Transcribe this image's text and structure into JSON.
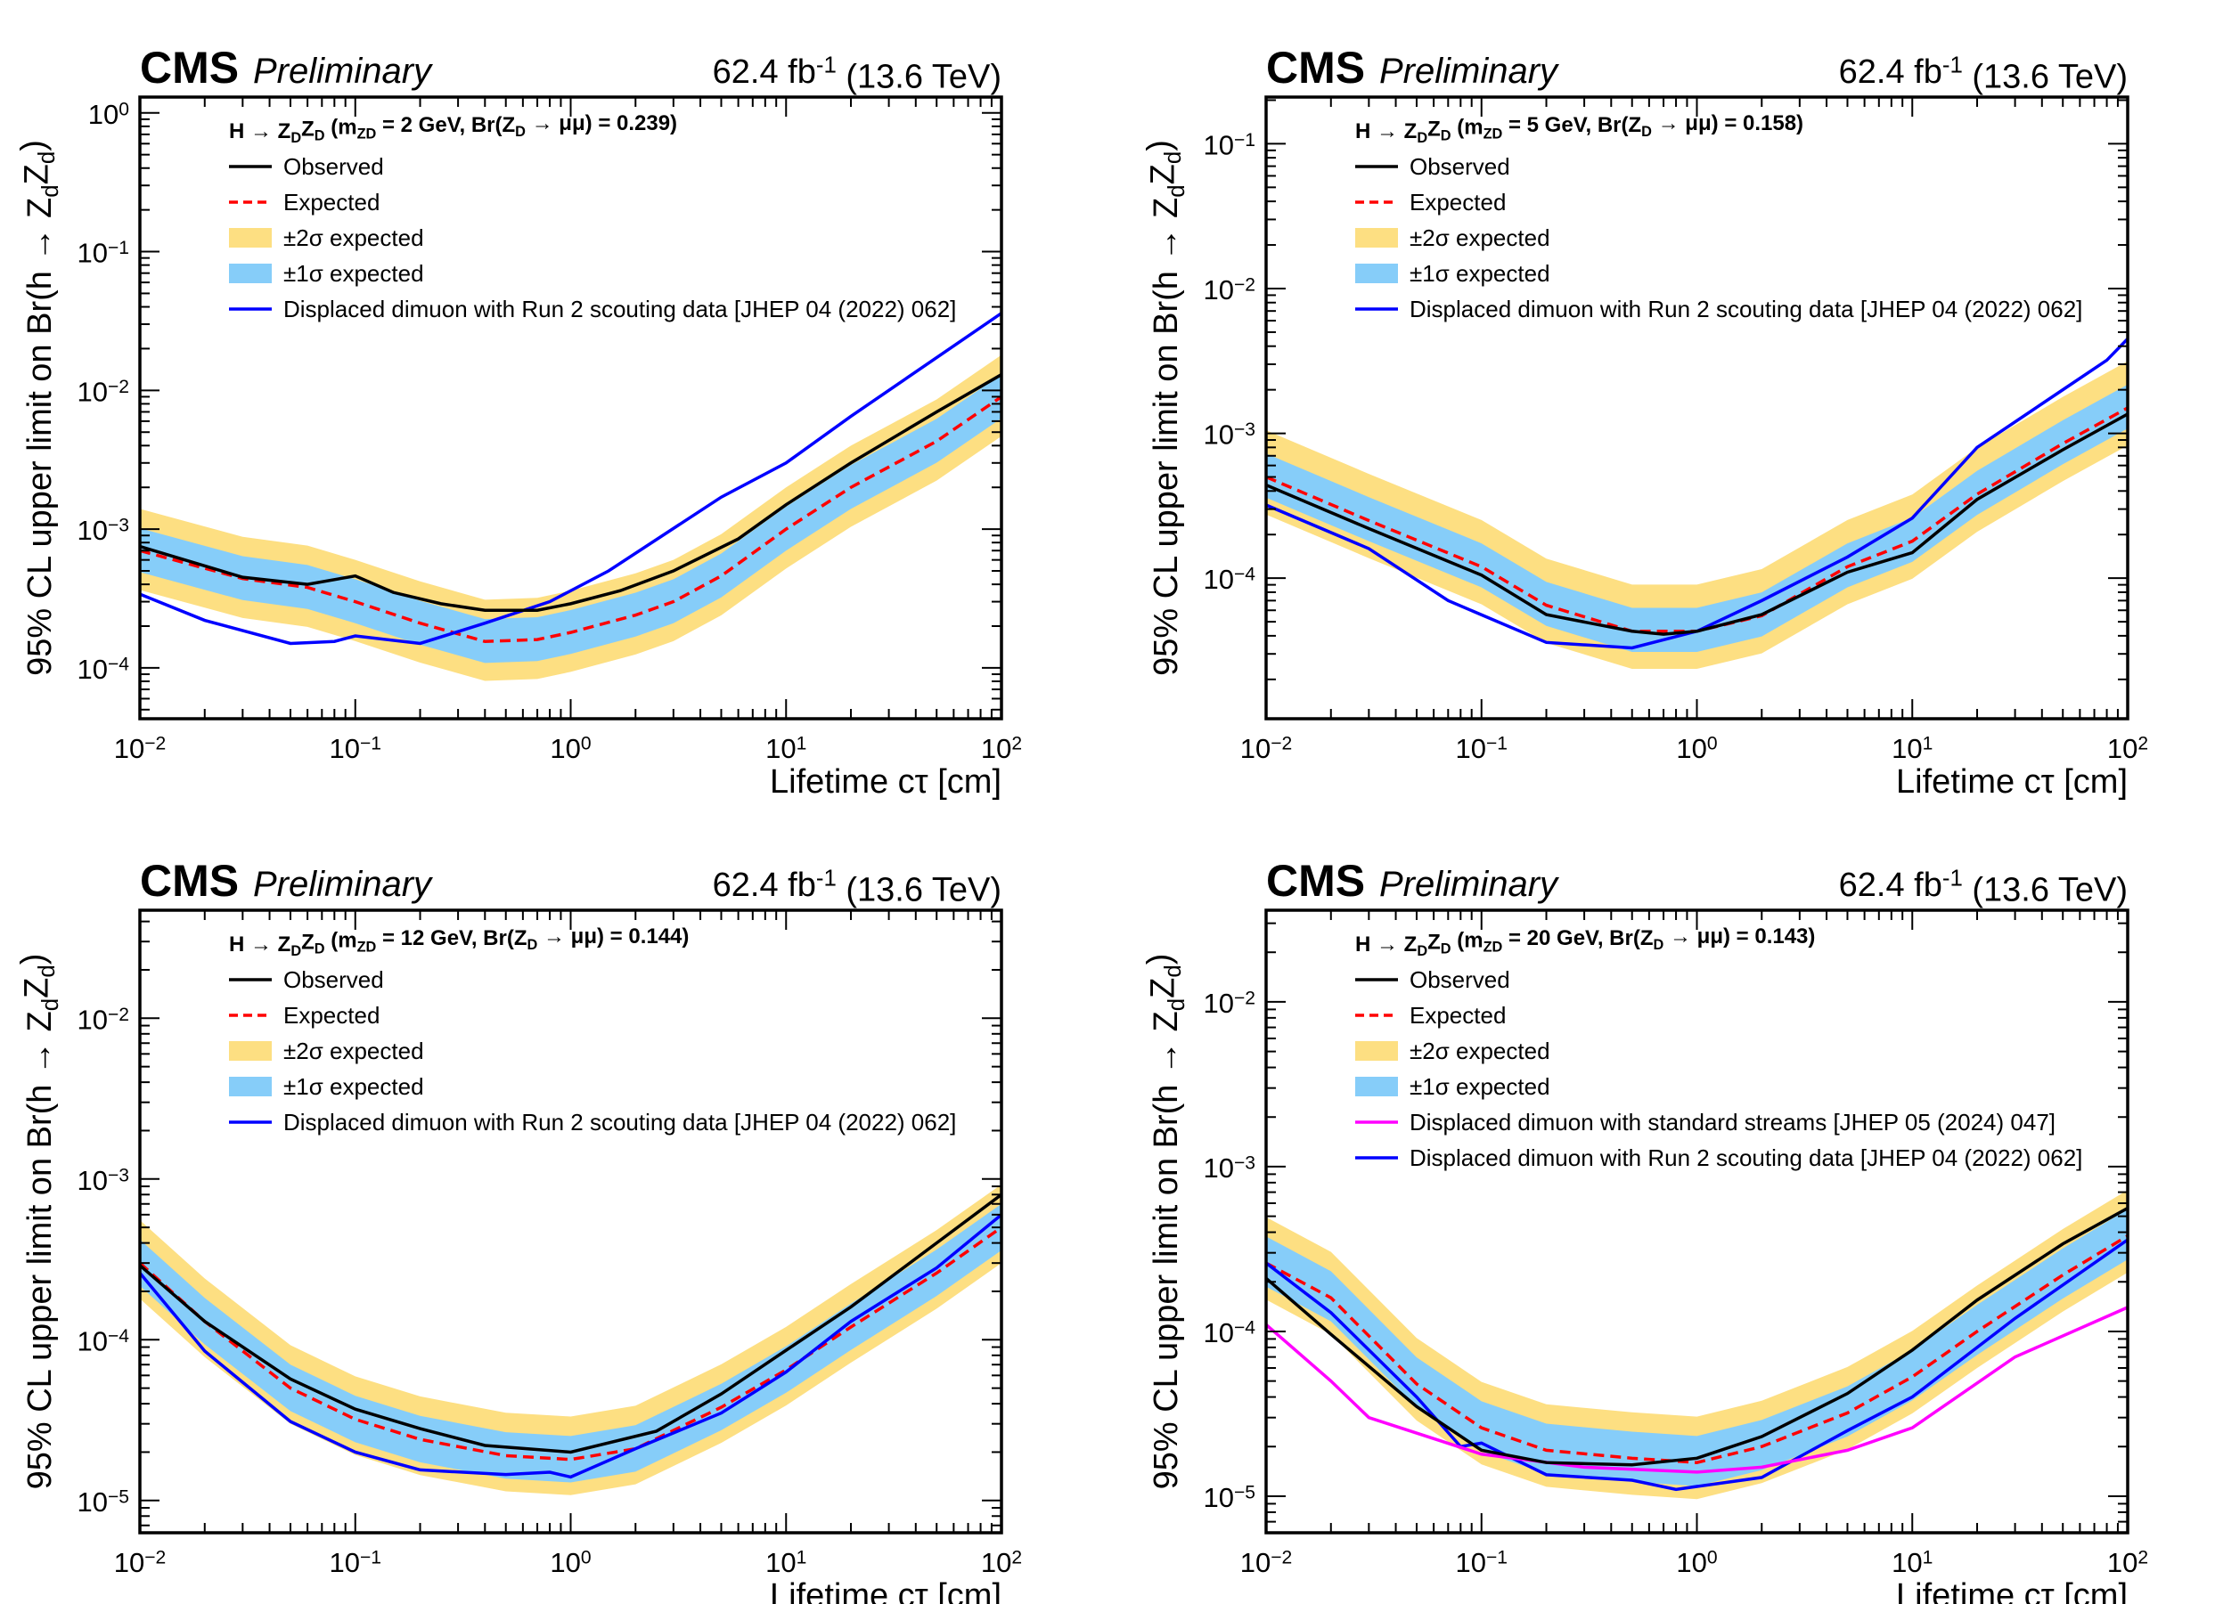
{
  "chart_data": [
    {
      "type": "line",
      "header": {
        "experiment": "CMS",
        "label": "Preliminary",
        "lumi": "62.4 fb^{-1} (13.6 TeV)"
      },
      "xlabel": "Lifetime cτ [cm]",
      "ylabel": "95% CL upper limit on Br(h → Z_{d}Z_{d})",
      "xscale": "log",
      "yscale": "log",
      "xlim": [
        0.01,
        100
      ],
      "ylim": [
        4.3e-05,
        1.3
      ],
      "x_ticks": [
        {
          "value": 0.01,
          "label": "10^{−2}"
        },
        {
          "value": 0.1,
          "label": "10^{−1}"
        },
        {
          "value": 1,
          "label": "10^{0}"
        },
        {
          "value": 10,
          "label": "10^{1}"
        },
        {
          "value": 100,
          "label": "10^{2}"
        }
      ],
      "y_ticks": [
        {
          "value": 1,
          "label": "10^{0}"
        },
        {
          "value": 0.1,
          "label": "10^{−1}"
        },
        {
          "value": 0.01,
          "label": "10^{−2}"
        },
        {
          "value": 0.001,
          "label": "10^{−3}"
        },
        {
          "value": 0.0001,
          "label": "10^{−4}"
        }
      ],
      "legend_title": "H → Z_{D}Z_{D} (m_{ZD} =  2 GeV, Br(Z_{D} → μμ) = 0.239)",
      "legend_position": "top-left",
      "legend": [
        {
          "label": "Observed",
          "kind": "line",
          "color": "#000000"
        },
        {
          "label": "Expected",
          "kind": "dashed",
          "color": "#ff0000"
        },
        {
          "label": "±2σ expected",
          "kind": "box",
          "color": "#fddf82"
        },
        {
          "label": "±1σ expected",
          "kind": "box",
          "color": "#86cdf9"
        },
        {
          "label": "Displaced dimuon with Run 2 scouting data [JHEP 04 (2022) 062]",
          "kind": "line",
          "color": "#0000ff"
        }
      ],
      "expected": {
        "x": [
          0.01,
          0.03,
          0.06,
          0.1,
          0.2,
          0.4,
          0.7,
          1,
          2,
          3,
          5,
          10,
          20,
          50,
          100
        ],
        "y": [
          0.0007,
          0.00044,
          0.00038,
          0.0003,
          0.00021,
          0.000155,
          0.00016,
          0.00018,
          0.00024,
          0.0003,
          0.00046,
          0.001,
          0.002,
          0.0043,
          0.009
        ]
      },
      "band_factors": {
        "one_sigma": [
          0.7,
          1.45
        ],
        "two_sigma": [
          0.52,
          2.0
        ]
      },
      "series": [
        {
          "name": "Observed",
          "color": "#000000",
          "x": [
            0.01,
            0.03,
            0.06,
            0.1,
            0.15,
            0.25,
            0.4,
            0.7,
            1,
            1.7,
            3,
            6,
            10,
            20,
            50,
            100
          ],
          "y": [
            0.00075,
            0.00045,
            0.0004,
            0.00046,
            0.00035,
            0.00029,
            0.00026,
            0.00026,
            0.00029,
            0.00036,
            0.0005,
            0.00085,
            0.0015,
            0.003,
            0.007,
            0.013
          ]
        },
        {
          "name": "Displaced dimuon with Run 2 scouting data [JHEP 04 (2022) 062]",
          "color": "#0000ff",
          "x": [
            0.01,
            0.02,
            0.05,
            0.08,
            0.1,
            0.2,
            0.4,
            0.8,
            1.5,
            5,
            10,
            20,
            100
          ],
          "y": [
            0.00034,
            0.00022,
            0.00015,
            0.000155,
            0.00017,
            0.00015,
            0.00021,
            0.0003,
            0.0005,
            0.0017,
            0.003,
            0.0065,
            0.036
          ]
        }
      ]
    },
    {
      "type": "line",
      "header": {
        "experiment": "CMS",
        "label": "Preliminary",
        "lumi": "62.4 fb^{-1} (13.6 TeV)"
      },
      "xlabel": "Lifetime cτ [cm]",
      "ylabel": "95% CL upper limit on Br(h → Z_{d}Z_{d})",
      "xscale": "log",
      "yscale": "log",
      "xlim": [
        0.01,
        100
      ],
      "ylim": [
        1.07e-05,
        0.21
      ],
      "x_ticks": [
        {
          "value": 0.01,
          "label": "10^{−2}"
        },
        {
          "value": 0.1,
          "label": "10^{−1}"
        },
        {
          "value": 1,
          "label": "10^{0}"
        },
        {
          "value": 10,
          "label": "10^{1}"
        },
        {
          "value": 100,
          "label": "10^{2}"
        }
      ],
      "y_ticks": [
        {
          "value": 0.1,
          "label": "10^{−1}"
        },
        {
          "value": 0.01,
          "label": "10^{−2}"
        },
        {
          "value": 0.001,
          "label": "10^{−3}"
        },
        {
          "value": 0.0001,
          "label": "10^{−4}"
        }
      ],
      "legend_title": "H → Z_{D}Z_{D} (m_{ZD} =  5 GeV, Br(Z_{D} → μμ) = 0.158)",
      "legend_position": "top-left",
      "legend": [
        {
          "label": "Observed",
          "kind": "line",
          "color": "#000000"
        },
        {
          "label": "Expected",
          "kind": "dashed",
          "color": "#ff0000"
        },
        {
          "label": "±2σ expected",
          "kind": "box",
          "color": "#fddf82"
        },
        {
          "label": "±1σ expected",
          "kind": "box",
          "color": "#86cdf9"
        },
        {
          "label": "Displaced dimuon with Run 2 scouting data [JHEP 04 (2022) 062]",
          "kind": "line",
          "color": "#0000ff"
        }
      ],
      "expected": {
        "x": [
          0.01,
          0.03,
          0.1,
          0.2,
          0.5,
          1,
          2,
          5,
          10,
          20,
          50,
          100
        ],
        "y": [
          0.0005,
          0.00025,
          0.00012,
          6.5e-05,
          4.3e-05,
          4.3e-05,
          5.5e-05,
          0.00012,
          0.00018,
          0.00038,
          0.00085,
          0.0015
        ]
      },
      "band_factors": {
        "one_sigma": [
          0.72,
          1.45
        ],
        "two_sigma": [
          0.55,
          2.1
        ]
      },
      "series": [
        {
          "name": "Observed",
          "color": "#000000",
          "x": [
            0.01,
            0.03,
            0.1,
            0.2,
            0.5,
            0.7,
            1,
            2,
            5,
            10,
            20,
            50,
            100
          ],
          "y": [
            0.00044,
            0.00022,
            0.000105,
            5.6e-05,
            4.3e-05,
            4.1e-05,
            4.3e-05,
            5.6e-05,
            0.00011,
            0.00015,
            0.00035,
            0.00077,
            0.00136
          ]
        },
        {
          "name": "Displaced dimuon with Run 2 scouting data [JHEP 04 (2022) 062]",
          "color": "#0000ff",
          "x": [
            0.01,
            0.03,
            0.07,
            0.2,
            0.5,
            1,
            2,
            5,
            10,
            20,
            50,
            80,
            100
          ],
          "y": [
            0.00032,
            0.00016,
            7e-05,
            3.6e-05,
            3.3e-05,
            4.3e-05,
            7e-05,
            0.00014,
            0.00026,
            0.0008,
            0.002,
            0.0032,
            0.0045
          ]
        }
      ]
    },
    {
      "type": "line",
      "header": {
        "experiment": "CMS",
        "label": "Preliminary",
        "lumi": "62.4 fb^{-1} (13.6 TeV)"
      },
      "xlabel": "Lifetime cτ [cm]",
      "ylabel": "95% CL upper limit on Br(h → Z_{d}Z_{d})",
      "xscale": "log",
      "yscale": "log",
      "xlim": [
        0.01,
        100
      ],
      "ylim": [
        6.3e-06,
        0.047
      ],
      "x_ticks": [
        {
          "value": 0.01,
          "label": "10^{−2}"
        },
        {
          "value": 0.1,
          "label": "10^{−1}"
        },
        {
          "value": 1,
          "label": "10^{0}"
        },
        {
          "value": 10,
          "label": "10^{1}"
        },
        {
          "value": 100,
          "label": "10^{2}"
        }
      ],
      "y_ticks": [
        {
          "value": 0.01,
          "label": "10^{−2}"
        },
        {
          "value": 0.001,
          "label": "10^{−3}"
        },
        {
          "value": 0.0001,
          "label": "10^{−4}"
        },
        {
          "value": 1e-05,
          "label": "10^{−5}"
        }
      ],
      "legend_title": "H → Z_{D}Z_{D} (m_{ZD} =  12 GeV, Br(Z_{D} → μμ) = 0.144)",
      "legend_position": "top-left",
      "legend": [
        {
          "label": "Observed",
          "kind": "line",
          "color": "#000000"
        },
        {
          "label": "Expected",
          "kind": "dashed",
          "color": "#ff0000"
        },
        {
          "label": "±2σ expected",
          "kind": "box",
          "color": "#fddf82"
        },
        {
          "label": "±1σ expected",
          "kind": "box",
          "color": "#86cdf9"
        },
        {
          "label": "Displaced dimuon with Run 2 scouting data [JHEP 04 (2022) 062]",
          "kind": "line",
          "color": "#0000ff"
        }
      ],
      "expected": {
        "x": [
          0.01,
          0.02,
          0.05,
          0.1,
          0.2,
          0.5,
          1,
          2,
          5,
          10,
          20,
          50,
          100
        ],
        "y": [
          0.0003,
          0.00013,
          5e-05,
          3.2e-05,
          2.4e-05,
          1.9e-05,
          1.8e-05,
          2.1e-05,
          3.8e-05,
          6.5e-05,
          0.00012,
          0.00026,
          0.0005
        ]
      },
      "band_factors": {
        "one_sigma": [
          0.72,
          1.4
        ],
        "two_sigma": [
          0.6,
          1.85
        ]
      },
      "series": [
        {
          "name": "Observed",
          "color": "#000000",
          "x": [
            0.01,
            0.02,
            0.05,
            0.1,
            0.2,
            0.4,
            1,
            2.5,
            5,
            10,
            20,
            50,
            100
          ],
          "y": [
            0.00029,
            0.00013,
            5.7e-05,
            3.7e-05,
            2.8e-05,
            2.2e-05,
            2e-05,
            2.7e-05,
            4.6e-05,
            8.6e-05,
            0.00016,
            0.0004,
            0.0008
          ]
        },
        {
          "name": "Displaced dimuon with Run 2 scouting data [JHEP 04 (2022) 062]",
          "color": "#0000ff",
          "x": [
            0.01,
            0.02,
            0.05,
            0.1,
            0.2,
            0.5,
            0.8,
            1,
            2,
            5,
            10,
            20,
            50,
            100
          ],
          "y": [
            0.00026,
            8.5e-05,
            3.1e-05,
            2e-05,
            1.55e-05,
            1.45e-05,
            1.5e-05,
            1.4e-05,
            2.1e-05,
            3.5e-05,
            6.3e-05,
            0.00013,
            0.00028,
            0.0006
          ]
        }
      ]
    },
    {
      "type": "line",
      "header": {
        "experiment": "CMS",
        "label": "Preliminary",
        "lumi": "62.4 fb^{-1} (13.6 TeV)"
      },
      "xlabel": "Lifetime cτ [cm]",
      "ylabel": "95% CL upper limit on Br(h → Z_{d}Z_{d})",
      "xscale": "log",
      "yscale": "log",
      "xlim": [
        0.01,
        100
      ],
      "ylim": [
        6e-06,
        0.036
      ],
      "x_ticks": [
        {
          "value": 0.01,
          "label": "10^{−2}"
        },
        {
          "value": 0.1,
          "label": "10^{−1}"
        },
        {
          "value": 1,
          "label": "10^{0}"
        },
        {
          "value": 10,
          "label": "10^{1}"
        },
        {
          "value": 100,
          "label": "10^{2}"
        }
      ],
      "y_ticks": [
        {
          "value": 0.01,
          "label": "10^{−2}"
        },
        {
          "value": 0.001,
          "label": "10^{−3}"
        },
        {
          "value": 0.0001,
          "label": "10^{−4}"
        },
        {
          "value": 1e-05,
          "label": "10^{−5}"
        }
      ],
      "legend_title": "H → Z_{D}Z_{D} (m_{ZD} =  20 GeV, Br(Z_{D} → μμ) = 0.143)",
      "legend_position": "top-left",
      "legend": [
        {
          "label": "Observed",
          "kind": "line",
          "color": "#000000"
        },
        {
          "label": "Expected",
          "kind": "dashed",
          "color": "#ff0000"
        },
        {
          "label": "±2σ expected",
          "kind": "box",
          "color": "#fddf82"
        },
        {
          "label": "±1σ expected",
          "kind": "box",
          "color": "#86cdf9"
        },
        {
          "label": "Displaced dimuon with standard streams [JHEP 05 (2024) 047]",
          "kind": "line",
          "color": "#ff00ff"
        },
        {
          "label": "Displaced dimuon with Run 2 scouting data [JHEP 04 (2022) 062]",
          "kind": "line",
          "color": "#0000ff"
        }
      ],
      "expected": {
        "x": [
          0.01,
          0.02,
          0.05,
          0.1,
          0.2,
          0.5,
          1,
          2,
          5,
          10,
          20,
          50,
          100
        ],
        "y": [
          0.00026,
          0.00016,
          4.8e-05,
          2.6e-05,
          1.9e-05,
          1.7e-05,
          1.6e-05,
          2e-05,
          3.2e-05,
          5.3e-05,
          0.0001,
          0.00022,
          0.00038
        ]
      },
      "band_factors": {
        "one_sigma": [
          0.72,
          1.45
        ],
        "two_sigma": [
          0.6,
          1.9
        ]
      },
      "series": [
        {
          "name": "Observed",
          "color": "#000000",
          "x": [
            0.01,
            0.02,
            0.05,
            0.1,
            0.2,
            0.5,
            1,
            2,
            5,
            10,
            20,
            50,
            100
          ],
          "y": [
            0.00021,
            9.6e-05,
            3.5e-05,
            1.9e-05,
            1.6e-05,
            1.55e-05,
            1.7e-05,
            2.3e-05,
            4.2e-05,
            7.7e-05,
            0.000155,
            0.00034,
            0.00056
          ]
        },
        {
          "name": "Displaced dimuon with standard streams [JHEP 05 (2024) 047]",
          "color": "#ff00ff",
          "x": [
            0.01,
            0.02,
            0.03,
            0.1,
            0.3,
            1,
            2,
            5,
            10,
            30,
            100
          ],
          "y": [
            0.00011,
            5e-05,
            3e-05,
            1.8e-05,
            1.5e-05,
            1.4e-05,
            1.5e-05,
            1.9e-05,
            2.6e-05,
            7e-05,
            0.00014
          ]
        },
        {
          "name": "Displaced dimuon with Run 2 scouting data [JHEP 04 (2022) 062]",
          "color": "#0000ff",
          "x": [
            0.01,
            0.02,
            0.05,
            0.08,
            0.1,
            0.2,
            0.5,
            0.8,
            2,
            5,
            10,
            30,
            100
          ],
          "y": [
            0.00026,
            0.00013,
            4e-05,
            2e-05,
            2.1e-05,
            1.35e-05,
            1.25e-05,
            1.1e-05,
            1.3e-05,
            2.5e-05,
            4e-05,
            0.00012,
            0.00036
          ]
        }
      ]
    }
  ]
}
